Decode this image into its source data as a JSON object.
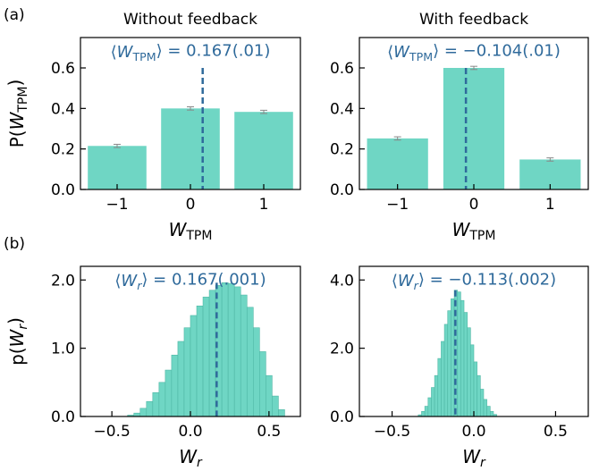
{
  "figure": {
    "panel_tags": [
      "(a)",
      "(b)"
    ],
    "bar_color": "#6fd6c4",
    "bar_edge_color": "#4fb7a5",
    "mean_line_color": "#2f6a9b",
    "errorbar_color": "#888888"
  },
  "chart_data": [
    {
      "type": "bar",
      "title": "Without feedback",
      "annotation": "⟨W_TPM⟩ = 0.167(.01)",
      "xlabel": "W_TPM",
      "ylabel": "P(W_TPM)",
      "categories": [
        "−1",
        "0",
        "1"
      ],
      "x": [
        -1,
        0,
        1
      ],
      "values": [
        0.215,
        0.4,
        0.383
      ],
      "errors": [
        0.008,
        0.008,
        0.008
      ],
      "mean": 0.167,
      "ylim": [
        0,
        0.75
      ],
      "yticks": [
        0.0,
        0.2,
        0.4,
        0.6
      ],
      "ytick_labels": [
        "0.0",
        "0.2",
        "0.4",
        "0.6"
      ]
    },
    {
      "type": "bar",
      "title": "With feedback",
      "annotation": "⟨W_TPM⟩ = −0.104(.01)",
      "xlabel": "W_TPM",
      "ylabel": "",
      "categories": [
        "−1",
        "0",
        "1"
      ],
      "x": [
        -1,
        0,
        1
      ],
      "values": [
        0.252,
        0.6,
        0.148
      ],
      "errors": [
        0.008,
        0.008,
        0.008
      ],
      "mean": -0.104,
      "ylim": [
        0,
        0.75
      ],
      "yticks": [
        0.0,
        0.2,
        0.4,
        0.6
      ],
      "ytick_labels": [
        "0.0",
        "0.2",
        "0.4",
        "0.6"
      ]
    },
    {
      "type": "bar",
      "subtype": "histogram",
      "annotation": "⟨W_r⟩ = 0.167(.001)",
      "xlabel": "W_r",
      "ylabel": "p(W_r)",
      "xlim": [
        -0.7,
        0.7
      ],
      "xticks": [
        -0.5,
        0.0,
        0.5
      ],
      "xtick_labels": [
        "−0.5",
        "0.0",
        "0.5"
      ],
      "ylim": [
        0,
        2.2
      ],
      "yticks": [
        0.0,
        1.0,
        2.0
      ],
      "ytick_labels": [
        "0.0",
        "1.0",
        "2.0"
      ],
      "bin_width": 0.04,
      "bin_centers": [
        -0.38,
        -0.34,
        -0.3,
        -0.26,
        -0.22,
        -0.18,
        -0.14,
        -0.1,
        -0.06,
        -0.02,
        0.02,
        0.06,
        0.1,
        0.14,
        0.18,
        0.22,
        0.26,
        0.3,
        0.34,
        0.38,
        0.42,
        0.46,
        0.5,
        0.54,
        0.58
      ],
      "values": [
        0.02,
        0.05,
        0.12,
        0.22,
        0.35,
        0.5,
        0.68,
        0.9,
        1.1,
        1.3,
        1.48,
        1.62,
        1.75,
        1.85,
        1.92,
        1.96,
        1.95,
        1.9,
        1.78,
        1.6,
        1.3,
        0.95,
        0.6,
        0.3,
        0.1
      ],
      "mean": 0.167
    },
    {
      "type": "bar",
      "subtype": "histogram",
      "annotation": "⟨W_r⟩ = −0.113(.002)",
      "xlabel": "W_r",
      "ylabel": "",
      "xlim": [
        -0.7,
        0.7
      ],
      "xticks": [
        -0.5,
        0.0,
        0.5
      ],
      "xtick_labels": [
        "−0.5",
        "0.0",
        "0.5"
      ],
      "ylim": [
        0,
        4.4
      ],
      "yticks": [
        0.0,
        2.0,
        4.0
      ],
      "ytick_labels": [
        "0.0",
        "2.0",
        "4.0"
      ],
      "bin_width": 0.02,
      "bin_centers": [
        -0.33,
        -0.31,
        -0.29,
        -0.27,
        -0.25,
        -0.23,
        -0.21,
        -0.19,
        -0.17,
        -0.15,
        -0.13,
        -0.11,
        -0.09,
        -0.07,
        -0.05,
        -0.03,
        -0.01,
        0.01,
        0.03,
        0.05,
        0.07,
        0.09,
        0.11,
        0.13
      ],
      "values": [
        0.05,
        0.15,
        0.3,
        0.55,
        0.85,
        1.2,
        1.7,
        2.2,
        2.7,
        3.1,
        3.45,
        3.7,
        3.65,
        3.4,
        3.05,
        2.6,
        2.1,
        1.6,
        1.2,
        0.8,
        0.5,
        0.3,
        0.15,
        0.06
      ],
      "mean": -0.113
    }
  ]
}
